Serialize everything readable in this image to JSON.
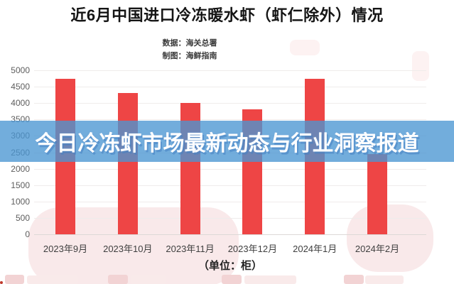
{
  "page": {
    "title": "近6月中国进口冷冻暖水虾（虾仁除外）情况",
    "source_line": "数据：海关总署",
    "maker_line": "制图：海鲜指南",
    "overlay_headline": "今日冷冻虾市场最新动态与行业洞察报道",
    "unit_label": "（单位：柜）"
  },
  "colors": {
    "bar_red": "#ee4545",
    "banner_blue": "rgba(74,150,210,0.78)",
    "grid": "#efeceb",
    "title_text": "#151515",
    "axis_text": "#5d5d5d",
    "banner_text": "#ffffff",
    "watermark_pink": "#f9e9ea"
  },
  "chart_data": {
    "type": "bar",
    "title": "近6月中国进口冷冻暖水虾（虾仁除外）情况",
    "subtitle_source": "数据：海关总署",
    "subtitle_credit": "制图：海鲜指南",
    "categories": [
      "2023年9月",
      "2023年10月",
      "2023年11月",
      "2023年12月",
      "2024年1月",
      "2024年2月"
    ],
    "values": [
      4750,
      4300,
      4000,
      3800,
      4750,
      2450
    ],
    "xlabel": "（单位：柜）",
    "ylabel": "",
    "unit": "柜",
    "ylim": [
      0,
      5000
    ],
    "ytick_step": 500,
    "grid": true,
    "legend_position": "none",
    "bar_color": "#ee4545"
  }
}
